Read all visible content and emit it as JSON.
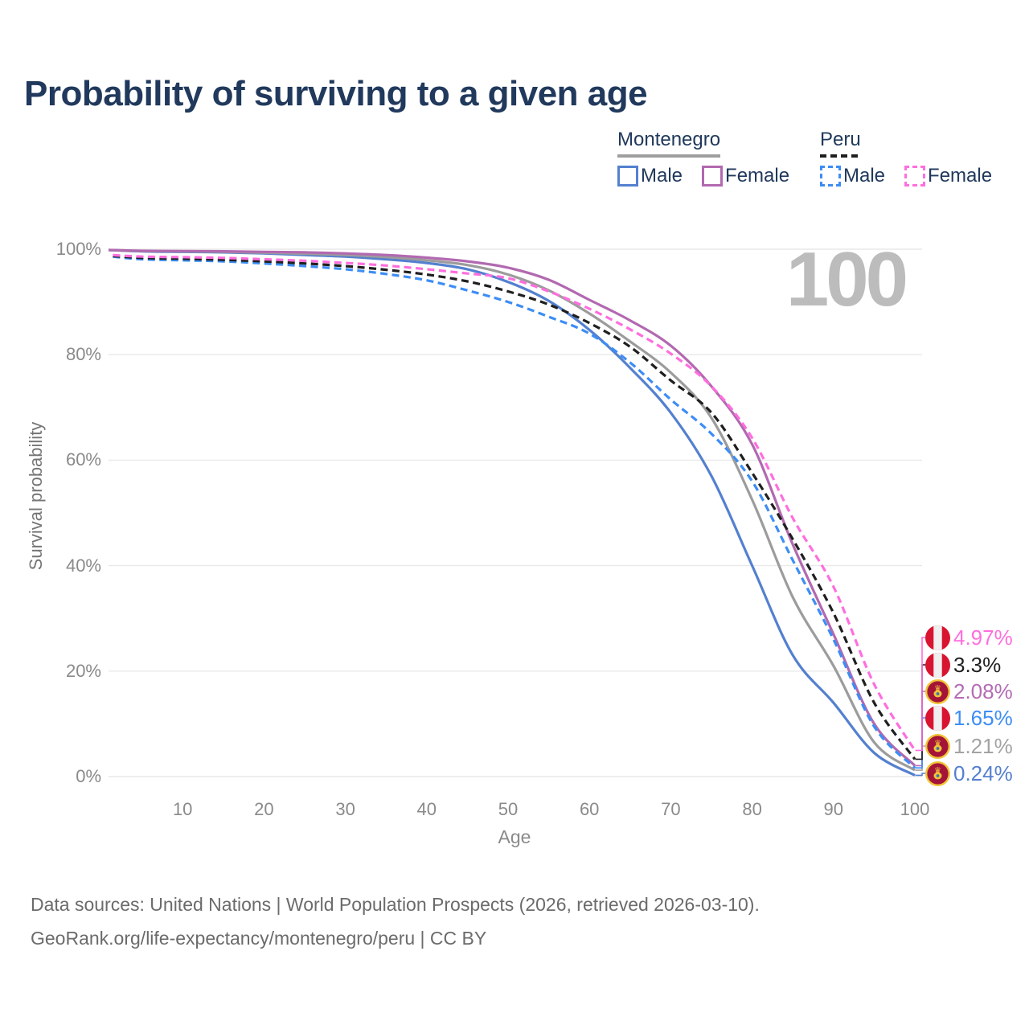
{
  "title": "Probability of surviving to a given age",
  "age_counter": "100",
  "legend": {
    "groups": [
      {
        "country": "Montenegro",
        "line_style": "solid",
        "line_color": "#9e9e9e",
        "items": [
          {
            "label": "Male",
            "color": "#5480cf"
          },
          {
            "label": "Female",
            "color": "#b269b0"
          }
        ]
      },
      {
        "country": "Peru",
        "line_style": "dashed",
        "line_color": "#1f1f1f",
        "items": [
          {
            "label": "Male",
            "color": "#3d8df5"
          },
          {
            "label": "Female",
            "color": "#ff6ede"
          }
        ]
      }
    ]
  },
  "chart_data": {
    "type": "line",
    "title": "Probability of surviving to a given age",
    "xlabel": "Age",
    "ylabel": "Survival probability",
    "x": [
      0,
      5,
      10,
      15,
      20,
      25,
      30,
      35,
      40,
      45,
      50,
      55,
      60,
      65,
      70,
      75,
      80,
      85,
      90,
      95,
      100
    ],
    "xlim": [
      0,
      100
    ],
    "ylim": [
      0,
      100
    ],
    "grid": "horizontal",
    "x_ticks": [
      10,
      20,
      30,
      40,
      50,
      60,
      70,
      80,
      90,
      100
    ],
    "y_ticks": [
      0,
      20,
      40,
      60,
      80,
      100
    ],
    "y_tick_labels": [
      "0%",
      "20%",
      "40%",
      "60%",
      "80%",
      "100%"
    ],
    "series": [
      {
        "key": "mne_male",
        "name": "Montenegro Male",
        "country": "Montenegro",
        "sex": "Male",
        "color": "#5480cf",
        "dash": "solid",
        "values": [
          99.9,
          99.6,
          99.5,
          99.4,
          99.2,
          98.9,
          98.6,
          98.1,
          97.4,
          96.2,
          93.8,
          90.2,
          84.7,
          77.5,
          69.0,
          57.0,
          40.0,
          23.0,
          14.0,
          4.5,
          0.24
        ]
      },
      {
        "key": "mne_total",
        "name": "Montenegro (both sexes)",
        "country": "Montenegro",
        "sex": "Both",
        "color": "#9c9c9c",
        "dash": "solid",
        "values": [
          99.9,
          99.65,
          99.6,
          99.5,
          99.35,
          99.15,
          98.9,
          98.5,
          97.9,
          97.0,
          95.2,
          92.2,
          87.8,
          82.5,
          76.6,
          68.0,
          52.5,
          34.0,
          21.0,
          6.5,
          1.21
        ]
      },
      {
        "key": "mne_female",
        "name": "Montenegro Female",
        "country": "Montenegro",
        "sex": "Female",
        "color": "#b269b0",
        "dash": "solid",
        "values": [
          99.9,
          99.7,
          99.65,
          99.6,
          99.5,
          99.4,
          99.2,
          98.9,
          98.4,
          97.7,
          96.5,
          94.2,
          90.4,
          86.5,
          81.7,
          74.0,
          63.0,
          44.0,
          27.0,
          10.0,
          2.08
        ]
      },
      {
        "key": "per_male",
        "name": "Peru Male",
        "country": "Peru",
        "sex": "Male",
        "color": "#3d8df5",
        "dash": "dashed",
        "values": [
          98.8,
          98.1,
          97.9,
          97.7,
          97.3,
          96.8,
          96.2,
          95.3,
          94.1,
          92.2,
          90.0,
          87.2,
          84.0,
          78.5,
          71.5,
          65.0,
          56.0,
          41.0,
          26.0,
          9.5,
          1.65
        ]
      },
      {
        "key": "per_total",
        "name": "Peru (both sexes)",
        "country": "Peru",
        "sex": "Both",
        "color": "#1f1f1f",
        "dash": "dashed",
        "values": [
          98.9,
          98.35,
          98.2,
          98.0,
          97.7,
          97.3,
          96.8,
          96.1,
          95.2,
          93.9,
          92.0,
          89.5,
          86.0,
          81.5,
          75.1,
          69.0,
          57.6,
          45.0,
          31.0,
          14.0,
          3.3
        ]
      },
      {
        "key": "per_female",
        "name": "Peru Female",
        "country": "Peru",
        "sex": "Female",
        "color": "#ff6ede",
        "dash": "dashed",
        "values": [
          99.0,
          98.6,
          98.5,
          98.35,
          98.1,
          97.8,
          97.4,
          96.9,
          96.2,
          95.4,
          94.5,
          92.0,
          88.7,
          84.8,
          80.2,
          74.0,
          64.2,
          49.0,
          36.0,
          17.5,
          4.97
        ]
      }
    ],
    "end_labels": [
      {
        "series": "per_female",
        "text": "4.97%",
        "value": 4.97,
        "flag": "peru",
        "color": "#ff6ede"
      },
      {
        "series": "per_total",
        "text": "3.3%",
        "value": 3.3,
        "flag": "peru",
        "color": "#1f1f1f"
      },
      {
        "series": "mne_female",
        "text": "2.08%",
        "value": 2.08,
        "flag": "montenegro",
        "color": "#b46cb4"
      },
      {
        "series": "per_male",
        "text": "1.65%",
        "value": 1.65,
        "flag": "peru",
        "color": "#3d8df5"
      },
      {
        "series": "mne_total",
        "text": "1.21%",
        "value": 1.21,
        "flag": "montenegro",
        "color": "#a3a3a3"
      },
      {
        "series": "mne_male",
        "text": "0.24%",
        "value": 0.24,
        "flag": "montenegro",
        "color": "#5480cf"
      }
    ]
  },
  "flags": {
    "peru": {
      "red": "#d91430",
      "white": "#efefef"
    },
    "montenegro": {
      "red": "#a41438",
      "gold": "#f0c437",
      "shield_blue": "#3b6fb5"
    }
  },
  "footer": {
    "line1": "Data sources: United Nations | World Population Prospects (2026, retrieved 2026-03-10).",
    "line2": "GeoRank.org/life-expectancy/montenegro/peru | CC BY"
  }
}
